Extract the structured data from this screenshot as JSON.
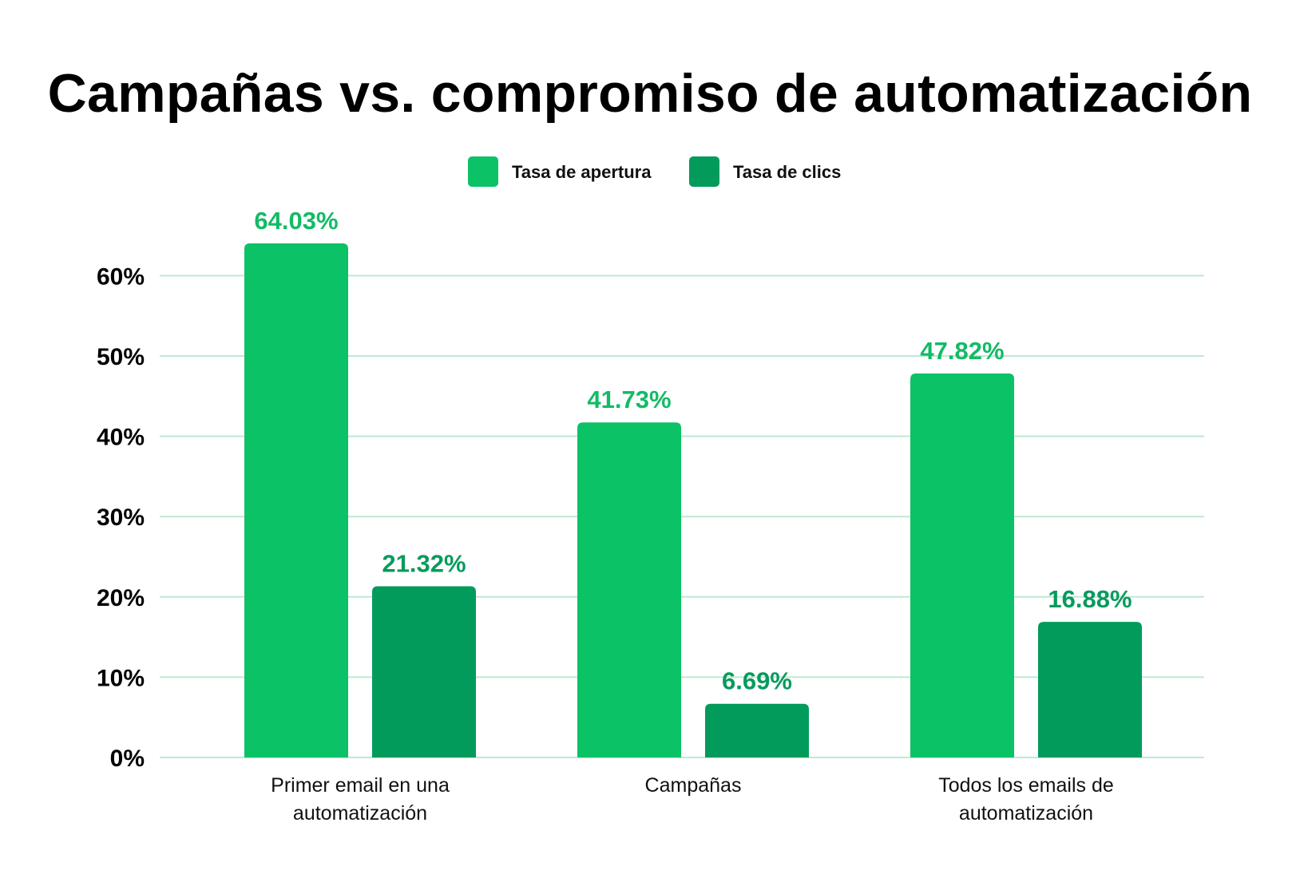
{
  "chart_data": {
    "type": "bar",
    "title": "Campañas vs. compromiso de automatización",
    "categories": [
      [
        "Primer email en una",
        "automatización"
      ],
      [
        "Campañas"
      ],
      [
        "Todos los emails de",
        "automatización"
      ]
    ],
    "series": [
      {
        "name": "Tasa de apertura",
        "color": "#0bc266",
        "label_color": "#12bb66",
        "values": [
          64.03,
          41.73,
          47.82
        ],
        "value_labels": [
          "64.03%",
          "41.73%",
          "47.82%"
        ]
      },
      {
        "name": "Tasa de clics",
        "color": "#029b5b",
        "label_color": "#079b5d",
        "values": [
          21.32,
          6.69,
          16.88
        ],
        "value_labels": [
          "21.32%",
          "6.69%",
          "16.88%"
        ]
      }
    ],
    "y_ticks": [
      0,
      10,
      20,
      30,
      40,
      50,
      60
    ],
    "y_tick_labels": [
      "0%",
      "10%",
      "20%",
      "30%",
      "40%",
      "50%",
      "60%"
    ],
    "ylim": [
      0,
      60
    ],
    "grid": true,
    "grid_color": "#bfe9d1",
    "legend": "top-center",
    "xlabel": "",
    "ylabel": ""
  }
}
